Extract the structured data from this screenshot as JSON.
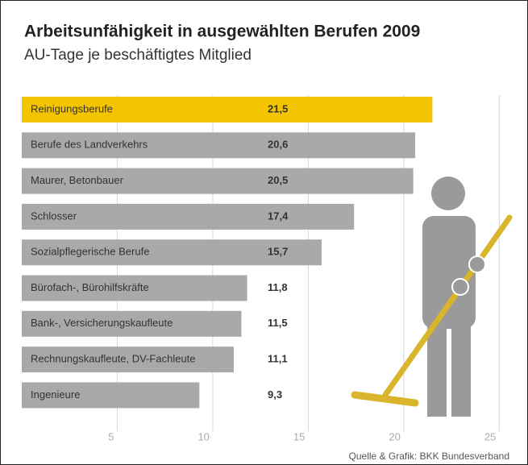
{
  "chart_data": {
    "type": "bar",
    "orientation": "horizontal",
    "title": "Arbeitsunfähigkeit in ausgewählten Berufen 2009",
    "subtitle": "AU-Tage je beschäftigtes Mitglied",
    "source": "Quelle & Grafik: BKK Bundesverband",
    "categories": [
      "Reinigungsberufe",
      "Berufe des Landverkehrs",
      "Maurer, Betonbauer",
      "Schlosser",
      "Sozialpflegerische Berufe",
      "Bürofach-, Bürohilfskräfte",
      "Bank-, Versicherungskaufleute",
      "Rechnungskaufleute, DV-Fachleute",
      "Ingenieure"
    ],
    "values": [
      21.5,
      20.6,
      20.5,
      17.4,
      15.7,
      11.8,
      11.5,
      11.1,
      9.3
    ],
    "value_labels": [
      "21,5",
      "20,6",
      "20,5",
      "17,4",
      "15,7",
      "11,8",
      "11,5",
      "11,1",
      "9,3"
    ],
    "colors": [
      "#f5c400",
      "#a9a9a9",
      "#a9a9a9",
      "#a9a9a9",
      "#a9a9a9",
      "#a9a9a9",
      "#a9a9a9",
      "#a9a9a9",
      "#a9a9a9"
    ],
    "xlim": [
      0,
      26
    ],
    "xticks": [
      5,
      10,
      15,
      20,
      25
    ],
    "grid": true
  }
}
